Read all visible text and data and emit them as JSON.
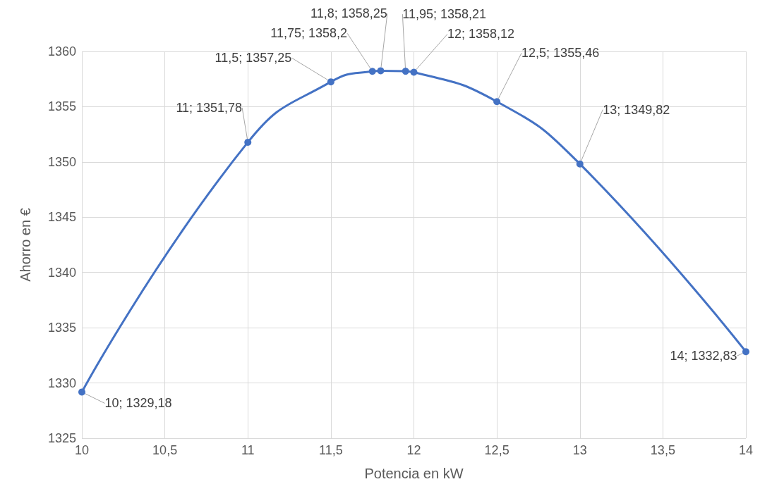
{
  "chart_data": {
    "type": "line",
    "xlabel": "Potencia en kW",
    "ylabel": "Ahorro en €",
    "x": [
      10,
      11,
      11.5,
      11.75,
      11.8,
      11.95,
      12,
      12.5,
      13,
      14
    ],
    "series": [
      {
        "color": "#4472c4",
        "values": [
          1329.18,
          1351.78,
          1357.25,
          1358.2,
          1358.25,
          1358.21,
          1358.12,
          1355.46,
          1349.82,
          1332.83
        ],
        "value_labels": [
          "10; 1329,18",
          "11; 1351,78",
          "11,5; 1357,25",
          "11,75; 1358,2",
          "11,8; 1358,25",
          "11,95; 1358,21",
          "12; 1358,12",
          "12,5; 1355,46",
          "13; 1349,82",
          "14; 1332,83"
        ]
      }
    ],
    "xlim": [
      10,
      14
    ],
    "xticks": [
      10,
      {
        "value": 10.5,
        "label": "10,5"
      },
      11,
      {
        "value": 11.5,
        "label": "11,5"
      },
      12,
      {
        "value": 12.5,
        "label": "12,5"
      },
      13,
      {
        "value": 13.5,
        "label": "13,5"
      },
      14
    ],
    "ylim": [
      1325,
      1360
    ],
    "yticks": [
      1325,
      1330,
      1335,
      1340,
      1345,
      1350,
      1355,
      1360
    ],
    "grid": true,
    "marker": "circle",
    "line_style": "solid"
  }
}
